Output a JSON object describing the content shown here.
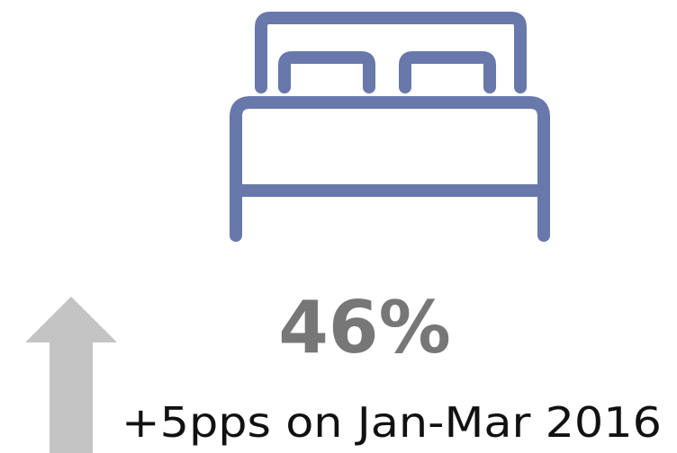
{
  "stat": {
    "value": "46%",
    "change": "+5pps on Jan-Mar 2016"
  }
}
